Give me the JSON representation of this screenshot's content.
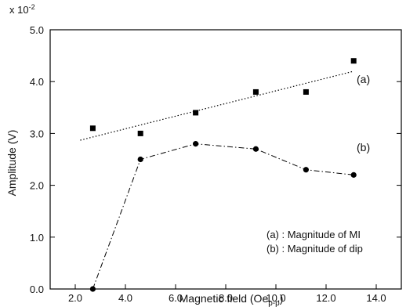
{
  "chart_data": {
    "type": "scatter",
    "xlabel": "Magnetic field (Oe",
    "xlabel_sub": "p-p",
    "xlabel_close": ")",
    "ylabel": "Amplitude (V)",
    "y_multiplier_base": "x 10",
    "y_multiplier_exp": "-2",
    "xlim": [
      1.0,
      15.0
    ],
    "ylim": [
      0.0,
      5.0
    ],
    "x_ticks": [
      2.0,
      4.0,
      6.0,
      8.0,
      10.0,
      12.0,
      14.0
    ],
    "x_tick_labels": [
      "2.0",
      "4.0",
      "6.0",
      "8.0",
      "10.0",
      "12.0",
      "14.0"
    ],
    "y_ticks": [
      0.0,
      1.0,
      2.0,
      3.0,
      4.0,
      5.0
    ],
    "y_tick_labels": [
      "0.0",
      "1.0",
      "2.0",
      "3.0",
      "4.0",
      "5.0"
    ],
    "grid": false,
    "legend": [
      "(a) : Magnitude of MI",
      "(b) : Magnitude of dip"
    ],
    "legend_position": "lower-right",
    "series": [
      {
        "name": "(a)",
        "marker": "square",
        "x": [
          2.7,
          4.6,
          6.8,
          9.2,
          11.2,
          13.1
        ],
        "y": [
          3.1,
          3.0,
          3.4,
          3.8,
          3.8,
          4.4
        ],
        "fit_line": {
          "style": "dotted",
          "x": [
            2.2,
            13.1
          ],
          "y": [
            2.87,
            4.2
          ]
        }
      },
      {
        "name": "(b)",
        "marker": "circle",
        "line_style": "dash-dot",
        "x": [
          2.7,
          4.6,
          6.8,
          9.2,
          11.2,
          13.1
        ],
        "y": [
          0.0,
          2.5,
          2.8,
          2.7,
          2.3,
          2.2
        ]
      }
    ]
  }
}
